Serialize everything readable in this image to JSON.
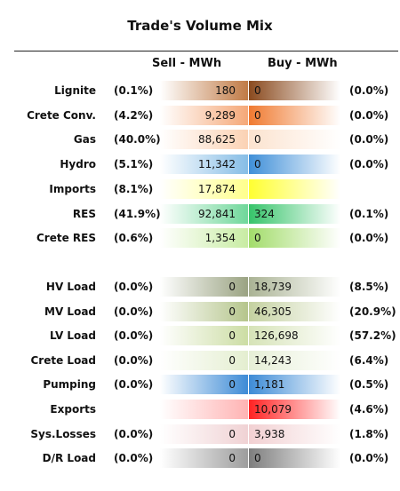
{
  "title": "Trade's Volume Mix",
  "chart_data": {
    "type": "table",
    "title": "Trade's Volume Mix",
    "columns": [
      "Sell - MWh",
      "Buy - MWh"
    ],
    "rows": [
      {
        "label": "Lignite",
        "sell": "180",
        "sell_pct": "(0.1%)",
        "buy": "0",
        "buy_pct": "(0.0%)",
        "sell_color": "#c07a45",
        "buy_color": "#8a4a1e"
      },
      {
        "label": "Crete Conv.",
        "sell": "9,289",
        "sell_pct": "(4.2%)",
        "buy": "0",
        "buy_pct": "(0.0%)",
        "sell_color": "#f5a878",
        "buy_color": "#f07a30"
      },
      {
        "label": "Gas",
        "sell": "88,625",
        "sell_pct": "(40.0%)",
        "buy": "0",
        "buy_pct": "(0.0%)",
        "sell_color": "#fbd2b4",
        "buy_color": "#fce3cf"
      },
      {
        "label": "Hydro",
        "sell": "11,342",
        "sell_pct": "(5.1%)",
        "buy": "0",
        "buy_pct": "(0.0%)",
        "sell_color": "#86bde6",
        "buy_color": "#3f8fd8"
      },
      {
        "label": "Imports",
        "sell": "17,874",
        "sell_pct": "(8.1%)",
        "buy": "",
        "buy_pct": "",
        "sell_color": "#ffff8c",
        "buy_color": "#ffff30"
      },
      {
        "label": "RES",
        "sell": "92,841",
        "sell_pct": "(41.9%)",
        "buy": "324",
        "buy_pct": "(0.1%)",
        "sell_color": "#6fd79a",
        "buy_color": "#36c46a"
      },
      {
        "label": "Crete RES",
        "sell": "1,354",
        "sell_pct": "(0.6%)",
        "buy": "0",
        "buy_pct": "(0.0%)",
        "sell_color": "#c8eca3",
        "buy_color": "#a2dc6a"
      },
      {
        "label": "HV Load",
        "sell": "0",
        "sell_pct": "(0.0%)",
        "buy": "18,739",
        "buy_pct": "(8.5%)",
        "sell_color": "#9aa382",
        "buy_color": "#aab394"
      },
      {
        "label": "MV Load",
        "sell": "0",
        "sell_pct": "(0.0%)",
        "buy": "46,305",
        "buy_pct": "(20.9%)",
        "sell_color": "#b5c58c",
        "buy_color": "#c4d1a0"
      },
      {
        "label": "LV Load",
        "sell": "0",
        "sell_pct": "(0.0%)",
        "buy": "126,698",
        "buy_pct": "(57.2%)",
        "sell_color": "#ccdda4",
        "buy_color": "#d6e3b7"
      },
      {
        "label": "Crete Load",
        "sell": "0",
        "sell_pct": "(0.0%)",
        "buy": "14,243",
        "buy_pct": "(6.4%)",
        "sell_color": "#e4eed0",
        "buy_color": "#e6efd6"
      },
      {
        "label": "Pumping",
        "sell": "0",
        "sell_pct": "(0.0%)",
        "buy": "1,181",
        "buy_pct": "(0.5%)",
        "sell_color": "#3d8bd6",
        "buy_color": "#3d8bd6"
      },
      {
        "label": "Exports",
        "sell": "",
        "sell_pct": "",
        "buy": "10,079",
        "buy_pct": "(4.6%)",
        "sell_color": "#ffb3b3",
        "buy_color": "#ff2222"
      },
      {
        "label": "Sys.Losses",
        "sell": "0",
        "sell_pct": "(0.0%)",
        "buy": "3,938",
        "buy_pct": "(1.8%)",
        "sell_color": "#f0d2d4",
        "buy_color": "#f2d0d2"
      },
      {
        "label": "D/R Load",
        "sell": "0",
        "sell_pct": "(0.0%)",
        "buy": "0",
        "buy_pct": "(0.0%)",
        "sell_color": "#9d9d9d",
        "buy_color": "#7e7e7e"
      }
    ]
  }
}
